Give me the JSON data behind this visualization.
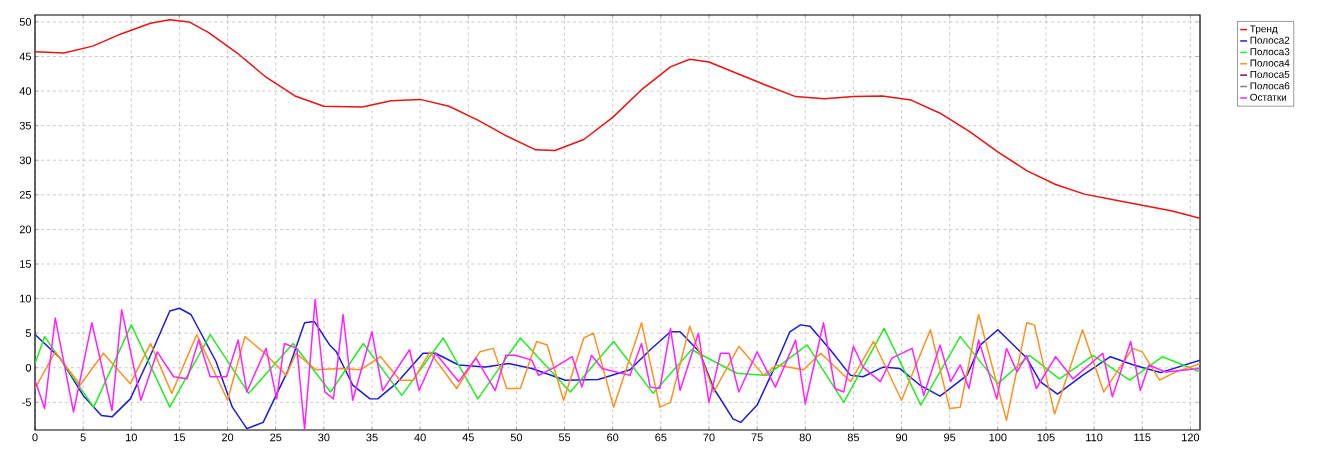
{
  "chart_data": {
    "type": "line",
    "xlim": [
      0,
      121
    ],
    "ylim": [
      -9,
      51
    ],
    "xticks": [
      0,
      5,
      10,
      15,
      20,
      25,
      30,
      35,
      40,
      45,
      50,
      55,
      60,
      65,
      70,
      75,
      80,
      85,
      90,
      95,
      100,
      105,
      110,
      115,
      120
    ],
    "yticks": [
      -5,
      0,
      5,
      10,
      15,
      20,
      25,
      30,
      35,
      40,
      45,
      50
    ],
    "grid": true,
    "legend": "top right",
    "marker": "none",
    "line_style": "solid",
    "series": [
      {
        "name": "Тренд",
        "color": "#ee1111",
        "x": [
          0,
          3,
          6,
          9,
          12,
          14,
          16,
          18,
          21,
          24,
          27,
          30,
          34,
          37,
          40,
          43,
          46,
          49,
          52,
          54,
          57,
          60,
          63,
          66,
          68,
          70,
          73,
          76,
          79,
          82,
          85,
          88,
          91,
          94,
          97,
          100,
          103,
          106,
          109,
          112,
          115,
          118,
          121
        ],
        "values": [
          45.7,
          45.5,
          46.5,
          48.3,
          49.8,
          50.3,
          50,
          48.5,
          45.5,
          42,
          39.3,
          37.8,
          37.7,
          38.6,
          38.8,
          37.8,
          35.8,
          33.5,
          31.5,
          31.4,
          33,
          36.2,
          40.2,
          43.5,
          44.6,
          44.2,
          42.5,
          40.8,
          39.2,
          38.9,
          39.2,
          39.3,
          38.7,
          36.8,
          34.2,
          31.2,
          28.5,
          26.5,
          25.1,
          24.3,
          23.5,
          22.7,
          21.6
        ]
      },
      {
        "name": "Полоса2",
        "color": "#1a1ae0",
        "x": [
          0,
          2.6,
          5,
          6.9,
          8,
          9.9,
          12,
          14,
          15,
          16.2,
          18.8,
          20.5,
          22,
          23.7,
          26.3,
          28,
          29,
          30.6,
          31.3,
          33,
          34.8,
          35.6,
          37.5,
          40.3,
          41.6,
          44,
          46.8,
          49.2,
          51.6,
          55.1,
          58.5,
          60.6,
          61.8,
          63.9,
          66,
          67,
          69,
          70.5,
          72.5,
          73.3,
          75,
          76.7,
          78.4,
          79.5,
          80.5,
          82.6,
          84.7,
          86,
          88.1,
          89.8,
          91.9,
          94,
          96.8,
          98.2,
          100,
          103,
          104.4,
          106.2,
          108.8,
          111.7,
          114.1,
          116.9,
          121
        ],
        "values": [
          4.8,
          1.4,
          -4.0,
          -6.9,
          -7.1,
          -4.5,
          1.8,
          8.2,
          8.6,
          7.7,
          0.9,
          -5.7,
          -8.8,
          -7.9,
          -0.3,
          6.5,
          6.7,
          3.3,
          2.3,
          -2.5,
          -4.5,
          -4.5,
          -2.3,
          2.1,
          2.1,
          0.4,
          0.1,
          0.6,
          -0.1,
          -1.8,
          -1.7,
          -0.8,
          -0.3,
          2.6,
          5.2,
          5.2,
          2.3,
          -3.0,
          -7.4,
          -7.9,
          -5.4,
          -0.3,
          5.2,
          6.2,
          6.0,
          2.6,
          -1.1,
          -1.3,
          0.1,
          -0.1,
          -2.5,
          -4.1,
          -1.1,
          3.3,
          5.5,
          1.4,
          -2.0,
          -3.8,
          -1.1,
          1.6,
          0.4,
          -0.7,
          1.1
        ]
      },
      {
        "name": "Полоса3",
        "color": "#22ee22",
        "x": [
          0,
          1,
          6.1,
          10,
          14,
          18.2,
          22.2,
          26.8,
          30.7,
          34.1,
          38.1,
          42.4,
          46,
          50.4,
          55.6,
          60.1,
          64.2,
          68.2,
          72.9,
          76,
          80.2,
          84,
          88.2,
          92,
          96.1,
          100,
          103.3,
          106.4,
          109.9,
          113.7,
          117.1,
          121
        ],
        "values": [
          0.6,
          4.5,
          -5.7,
          6.2,
          -5.7,
          4.8,
          -3.7,
          3.5,
          -3.5,
          3.5,
          -4.0,
          4.3,
          -4.5,
          4.3,
          -3.5,
          3.8,
          -3.7,
          2.6,
          -0.8,
          -1.1,
          3.3,
          -5.0,
          5.7,
          -5.4,
          4.5,
          -2.3,
          1.8,
          -1.6,
          1.8,
          -1.8,
          1.6,
          -0.6
        ]
      },
      {
        "name": "Полоса4",
        "color": "#ff9020",
        "x": [
          0,
          2.1,
          4.7,
          7.1,
          9.9,
          12,
          14.2,
          16.8,
          20,
          21.8,
          23.7,
          26.1,
          27.1,
          29.2,
          31.7,
          33.8,
          35.9,
          37.9,
          39.3,
          41,
          43.8,
          46.2,
          47.6,
          49,
          50.4,
          52.1,
          53.2,
          54.9,
          57,
          58,
          60.1,
          63,
          64.9,
          66,
          68,
          70.5,
          73.1,
          75.7,
          77,
          79.8,
          81.6,
          84.7,
          87.1,
          90,
          93,
          95,
          96.1,
          98,
          100.9,
          103,
          103.8,
          105.9,
          108.8,
          111,
          114,
          115,
          116.8,
          118.5,
          121
        ],
        "values": [
          -3.0,
          2.3,
          -2.5,
          2.1,
          -2.3,
          3.5,
          -3.7,
          4.8,
          -4.7,
          4.5,
          2.3,
          -1.1,
          2.1,
          -0.3,
          -0.1,
          -0.3,
          1.6,
          -1.8,
          -1.8,
          2.3,
          -3.0,
          2.3,
          2.8,
          -3.0,
          -3.0,
          3.8,
          3.3,
          -4.7,
          4.3,
          5.0,
          -5.7,
          6.5,
          -5.7,
          -5.0,
          6.0,
          -3.5,
          3.1,
          -1.1,
          0.4,
          -0.3,
          2.1,
          -2.0,
          3.8,
          -4.7,
          5.5,
          -5.9,
          -5.7,
          7.7,
          -7.6,
          6.5,
          6.2,
          -6.7,
          5.5,
          -3.5,
          2.8,
          2.3,
          -1.8,
          -0.6,
          0.6
        ]
      },
      {
        "name": "Полоса5",
        "color": "#800080",
        "values": [
          null
        ]
      },
      {
        "name": "Полоса6",
        "color": "#808080",
        "values": [
          null
        ]
      },
      {
        "name": "Остатки",
        "color": "#ff22ff",
        "x": [
          0,
          1,
          2.1,
          4,
          5.9,
          8,
          9,
          11,
          12.7,
          14.4,
          15.8,
          17,
          18.2,
          19.9,
          21.1,
          22,
          24,
          25.1,
          25.9,
          27.2,
          28,
          29.1,
          30.1,
          31,
          32,
          33,
          35,
          36.1,
          38.9,
          39.9,
          41.6,
          44,
          45.8,
          47.8,
          48.9,
          49.9,
          51.6,
          52.3,
          54,
          55.8,
          56.8,
          57.8,
          58.9,
          61.8,
          63,
          63.9,
          64.9,
          66,
          67,
          68.9,
          70,
          71.2,
          72.1,
          73.1,
          75,
          76.9,
          79,
          80,
          81.9,
          83.1,
          84,
          85,
          86,
          87.8,
          89,
          91.1,
          92.3,
          94,
          95.1,
          96.1,
          97,
          98,
          99.9,
          100.9,
          102,
          103,
          104,
          106,
          107.8,
          110.9,
          111.9,
          113.8,
          114.8,
          115.7,
          117.4,
          121
        ],
        "values": [
          -1.8,
          -5.9,
          7.2,
          -6.4,
          6.5,
          -6.2,
          8.4,
          -4.7,
          2.3,
          -1.3,
          -1.6,
          4.0,
          -1.3,
          -1.3,
          4.0,
          -3.5,
          2.8,
          -4.5,
          3.5,
          2.8,
          -8.9,
          9.9,
          -3.5,
          -4.5,
          7.7,
          -4.7,
          5.2,
          -3.3,
          2.6,
          -3.3,
          2.1,
          -2.0,
          1.4,
          -3.3,
          1.8,
          1.8,
          1.1,
          -1.1,
          0.1,
          1.6,
          -2.8,
          1.8,
          -0.1,
          -1.1,
          3.5,
          -2.8,
          -3.0,
          5.7,
          -3.3,
          5.0,
          -5.0,
          2.1,
          2.1,
          -3.5,
          2.3,
          -2.8,
          4.0,
          -5.2,
          6.5,
          -3.0,
          -3.5,
          3.1,
          0.1,
          -2.0,
          1.4,
          2.8,
          -4.0,
          3.3,
          -2.0,
          0.4,
          -3.0,
          4.0,
          -4.5,
          2.8,
          -0.6,
          1.8,
          -3.0,
          1.6,
          -1.6,
          2.1,
          -4.2,
          3.8,
          -3.3,
          0.4,
          -0.6,
          -0.1
        ]
      }
    ]
  }
}
